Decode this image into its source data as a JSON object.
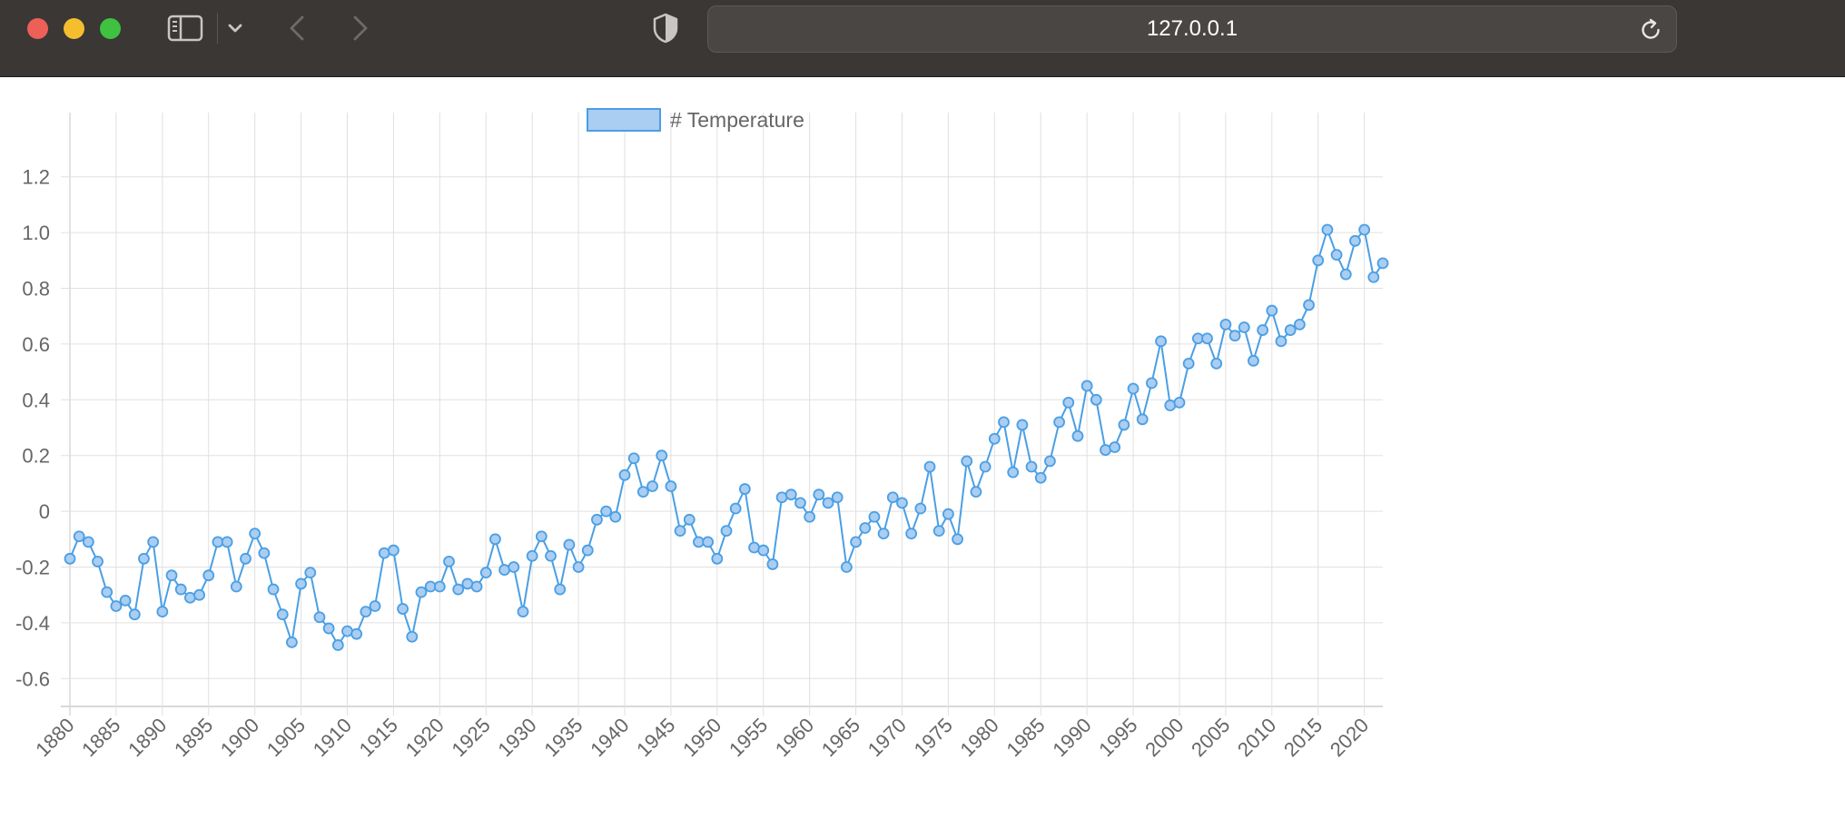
{
  "browser": {
    "url": "127.0.0.1",
    "icons": [
      "sidebar-icon",
      "chevron-down-icon",
      "back-arrow-icon",
      "forward-arrow-icon",
      "shield-icon",
      "reload-icon"
    ]
  },
  "colors": {
    "series_line": "#4a9fe4",
    "series_fill": "#aacdf2",
    "grid": "#e0e0e0",
    "axis_text": "#666666"
  },
  "chart_data": {
    "type": "line",
    "title": "",
    "xlabel": "",
    "ylabel": "",
    "legend": {
      "position": "top-center"
    },
    "grid": true,
    "ylim": [
      -0.7,
      1.3
    ],
    "y_ticks": [
      "1.2",
      "1.0",
      "0.8",
      "0.6",
      "0.4",
      "0.2",
      "0",
      "-0.2",
      "-0.4",
      "-0.6"
    ],
    "x_tick_labels": [
      "1880",
      "1885",
      "1890",
      "1895",
      "1900",
      "1905",
      "1910",
      "1915",
      "1920",
      "1925",
      "1930",
      "1935",
      "1940",
      "1945",
      "1950",
      "1955",
      "1960",
      "1965",
      "1970",
      "1975",
      "1980",
      "1985",
      "1990",
      "1995",
      "2000",
      "2005",
      "2010",
      "2015",
      "2020"
    ],
    "x_start": 1880,
    "x_end": 2022,
    "series": [
      {
        "name": "# Temperature",
        "values": [
          -0.17,
          -0.09,
          -0.11,
          -0.18,
          -0.29,
          -0.34,
          -0.32,
          -0.37,
          -0.17,
          -0.11,
          -0.36,
          -0.23,
          -0.28,
          -0.31,
          -0.3,
          -0.23,
          -0.11,
          -0.11,
          -0.27,
          -0.17,
          -0.08,
          -0.15,
          -0.28,
          -0.37,
          -0.47,
          -0.26,
          -0.22,
          -0.38,
          -0.42,
          -0.48,
          -0.43,
          -0.44,
          -0.36,
          -0.34,
          -0.15,
          -0.14,
          -0.35,
          -0.45,
          -0.29,
          -0.27,
          -0.27,
          -0.18,
          -0.28,
          -0.26,
          -0.27,
          -0.22,
          -0.1,
          -0.21,
          -0.2,
          -0.36,
          -0.16,
          -0.09,
          -0.16,
          -0.28,
          -0.12,
          -0.2,
          -0.14,
          -0.03,
          0.0,
          -0.02,
          0.13,
          0.19,
          0.07,
          0.09,
          0.2,
          0.09,
          -0.07,
          -0.03,
          -0.11,
          -0.11,
          -0.17,
          -0.07,
          0.01,
          0.08,
          -0.13,
          -0.14,
          -0.19,
          0.05,
          0.06,
          0.03,
          -0.02,
          0.06,
          0.03,
          0.05,
          -0.2,
          -0.11,
          -0.06,
          -0.02,
          -0.08,
          0.05,
          0.03,
          -0.08,
          0.01,
          0.16,
          -0.07,
          -0.01,
          -0.1,
          0.18,
          0.07,
          0.16,
          0.26,
          0.32,
          0.14,
          0.31,
          0.16,
          0.12,
          0.18,
          0.32,
          0.39,
          0.27,
          0.45,
          0.4,
          0.22,
          0.23,
          0.31,
          0.44,
          0.33,
          0.46,
          0.61,
          0.38,
          0.39,
          0.53,
          0.62,
          0.62,
          0.53,
          0.67,
          0.63,
          0.66,
          0.54,
          0.65,
          0.72,
          0.61,
          0.65,
          0.67,
          0.74,
          0.9,
          1.01,
          0.92,
          0.85,
          0.97,
          1.01,
          0.84,
          0.89
        ]
      }
    ]
  }
}
